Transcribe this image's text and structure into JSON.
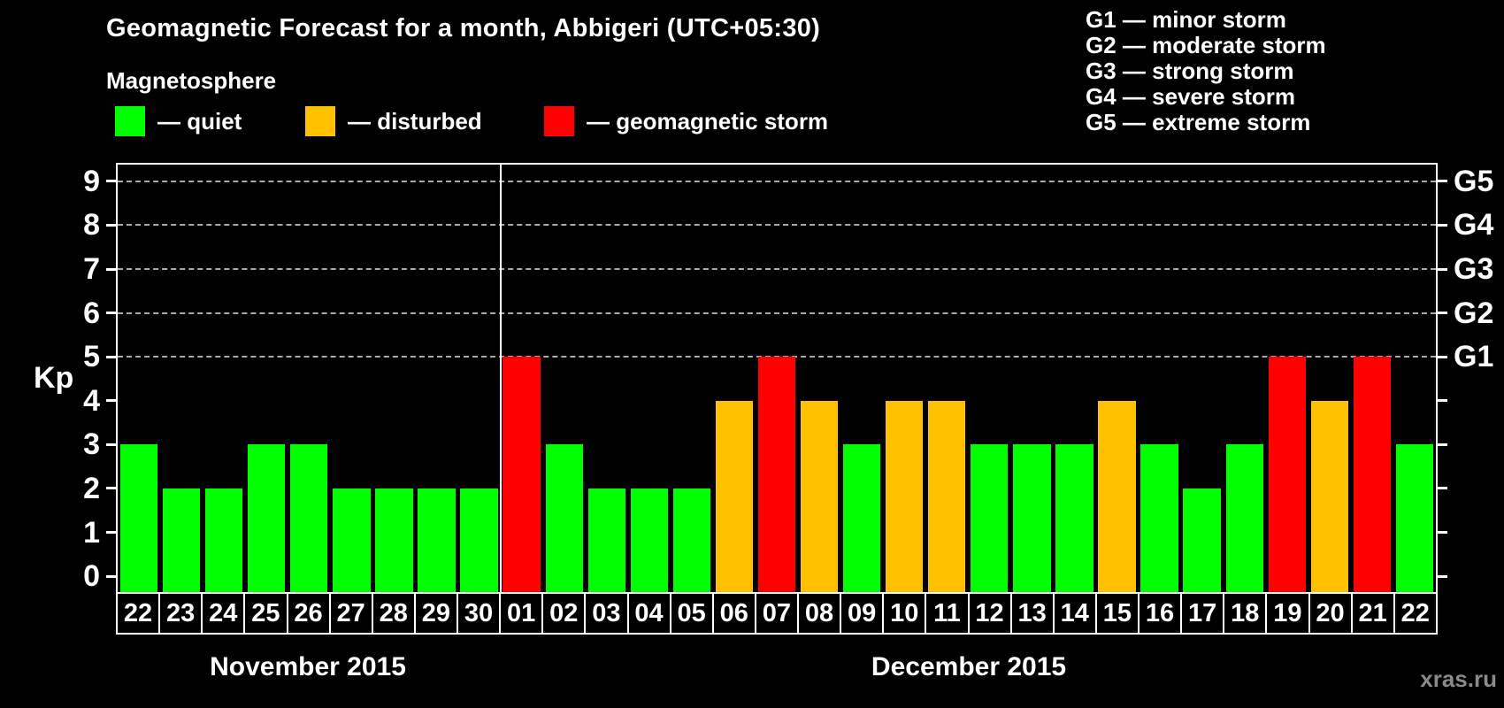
{
  "title": "Geomagnetic Forecast for a month, Abbigeri (UTC+05:30)",
  "subtitle": "Magnetosphere",
  "watermark": "xras.ru",
  "colors": {
    "quiet": "#00ff00",
    "disturbed": "#ffc000",
    "storm": "#ff0000",
    "background": "#000000",
    "axis": "#ffffff",
    "grid": "#a9a9a9",
    "watermark": "#8a8a8a"
  },
  "legend": [
    {
      "status": "quiet",
      "label": "— quiet"
    },
    {
      "status": "disturbed",
      "label": "— disturbed"
    },
    {
      "status": "storm",
      "label": "— geomagnetic storm"
    }
  ],
  "g_scale_legend": [
    {
      "code": "G1",
      "desc": "minor storm"
    },
    {
      "code": "G2",
      "desc": "moderate storm"
    },
    {
      "code": "G3",
      "desc": "strong storm"
    },
    {
      "code": "G4",
      "desc": "severe storm"
    },
    {
      "code": "G5",
      "desc": "extreme storm"
    }
  ],
  "chart_data": {
    "type": "bar",
    "ylabel": "Kp",
    "ylim": [
      -0.36,
      9.38
    ],
    "yticks": [
      0,
      1,
      2,
      3,
      4,
      5,
      6,
      7,
      8,
      9
    ],
    "gridlines": [
      5,
      6,
      7,
      8,
      9
    ],
    "grid_style": "dashed horizontal lines at storm levels G1-G5",
    "legend_position": "top",
    "right_axis": [
      {
        "kp": 5,
        "label": "G1"
      },
      {
        "kp": 6,
        "label": "G2"
      },
      {
        "kp": 7,
        "label": "G3"
      },
      {
        "kp": 8,
        "label": "G4"
      },
      {
        "kp": 9,
        "label": "G5"
      }
    ],
    "months": [
      {
        "name": "November 2015",
        "days": 9
      },
      {
        "name": "December 2015",
        "days": 22
      }
    ],
    "days": [
      {
        "month": "November 2015",
        "day": "22",
        "kp": 3,
        "status": "quiet"
      },
      {
        "month": "November 2015",
        "day": "23",
        "kp": 2,
        "status": "quiet"
      },
      {
        "month": "November 2015",
        "day": "24",
        "kp": 2,
        "status": "quiet"
      },
      {
        "month": "November 2015",
        "day": "25",
        "kp": 3,
        "status": "quiet"
      },
      {
        "month": "November 2015",
        "day": "26",
        "kp": 3,
        "status": "quiet"
      },
      {
        "month": "November 2015",
        "day": "27",
        "kp": 2,
        "status": "quiet"
      },
      {
        "month": "November 2015",
        "day": "28",
        "kp": 2,
        "status": "quiet"
      },
      {
        "month": "November 2015",
        "day": "29",
        "kp": 2,
        "status": "quiet"
      },
      {
        "month": "November 2015",
        "day": "30",
        "kp": 2,
        "status": "quiet"
      },
      {
        "month": "December 2015",
        "day": "01",
        "kp": 5,
        "status": "storm"
      },
      {
        "month": "December 2015",
        "day": "02",
        "kp": 3,
        "status": "quiet"
      },
      {
        "month": "December 2015",
        "day": "03",
        "kp": 2,
        "status": "quiet"
      },
      {
        "month": "December 2015",
        "day": "04",
        "kp": 2,
        "status": "quiet"
      },
      {
        "month": "December 2015",
        "day": "05",
        "kp": 2,
        "status": "quiet"
      },
      {
        "month": "December 2015",
        "day": "06",
        "kp": 4,
        "status": "disturbed"
      },
      {
        "month": "December 2015",
        "day": "07",
        "kp": 5,
        "status": "storm"
      },
      {
        "month": "December 2015",
        "day": "08",
        "kp": 4,
        "status": "disturbed"
      },
      {
        "month": "December 2015",
        "day": "09",
        "kp": 3,
        "status": "quiet"
      },
      {
        "month": "December 2015",
        "day": "10",
        "kp": 4,
        "status": "disturbed"
      },
      {
        "month": "December 2015",
        "day": "11",
        "kp": 4,
        "status": "disturbed"
      },
      {
        "month": "December 2015",
        "day": "12",
        "kp": 3,
        "status": "quiet"
      },
      {
        "month": "December 2015",
        "day": "13",
        "kp": 3,
        "status": "quiet"
      },
      {
        "month": "December 2015",
        "day": "14",
        "kp": 3,
        "status": "quiet"
      },
      {
        "month": "December 2015",
        "day": "15",
        "kp": 4,
        "status": "disturbed"
      },
      {
        "month": "December 2015",
        "day": "16",
        "kp": 3,
        "status": "quiet"
      },
      {
        "month": "December 2015",
        "day": "17",
        "kp": 2,
        "status": "quiet"
      },
      {
        "month": "December 2015",
        "day": "18",
        "kp": 3,
        "status": "quiet"
      },
      {
        "month": "December 2015",
        "day": "19",
        "kp": 5,
        "status": "storm"
      },
      {
        "month": "December 2015",
        "day": "20",
        "kp": 4,
        "status": "disturbed"
      },
      {
        "month": "December 2015",
        "day": "21",
        "kp": 5,
        "status": "storm"
      },
      {
        "month": "December 2015",
        "day": "22",
        "kp": 3,
        "status": "quiet"
      }
    ]
  }
}
